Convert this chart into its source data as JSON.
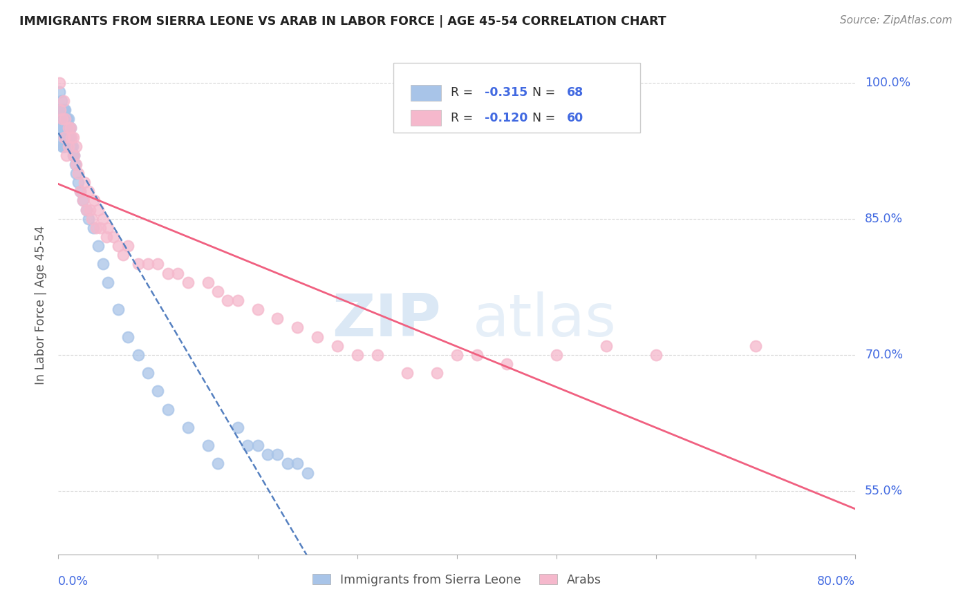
{
  "title": "IMMIGRANTS FROM SIERRA LEONE VS ARAB IN LABOR FORCE | AGE 45-54 CORRELATION CHART",
  "source": "Source: ZipAtlas.com",
  "ylabel": "In Labor Force | Age 45-54",
  "watermark_zip": "ZIP",
  "watermark_atlas": "atlas",
  "sierra_leone_x": [
    0.001,
    0.002,
    0.002,
    0.003,
    0.003,
    0.003,
    0.004,
    0.004,
    0.004,
    0.005,
    0.005,
    0.005,
    0.005,
    0.006,
    0.006,
    0.006,
    0.006,
    0.007,
    0.007,
    0.007,
    0.007,
    0.008,
    0.008,
    0.008,
    0.009,
    0.009,
    0.009,
    0.01,
    0.01,
    0.01,
    0.01,
    0.011,
    0.011,
    0.012,
    0.012,
    0.013,
    0.013,
    0.014,
    0.015,
    0.016,
    0.017,
    0.018,
    0.02,
    0.022,
    0.025,
    0.028,
    0.03,
    0.035,
    0.04,
    0.045,
    0.05,
    0.06,
    0.07,
    0.08,
    0.09,
    0.1,
    0.11,
    0.13,
    0.15,
    0.16,
    0.18,
    0.19,
    0.2,
    0.21,
    0.22,
    0.23,
    0.24,
    0.25
  ],
  "sierra_leone_y": [
    0.99,
    0.97,
    0.96,
    0.98,
    0.96,
    0.94,
    0.97,
    0.95,
    0.93,
    0.97,
    0.96,
    0.95,
    0.93,
    0.97,
    0.96,
    0.95,
    0.93,
    0.97,
    0.96,
    0.95,
    0.94,
    0.96,
    0.95,
    0.94,
    0.96,
    0.95,
    0.94,
    0.96,
    0.95,
    0.94,
    0.93,
    0.95,
    0.94,
    0.95,
    0.94,
    0.94,
    0.93,
    0.93,
    0.92,
    0.92,
    0.91,
    0.9,
    0.89,
    0.88,
    0.87,
    0.86,
    0.85,
    0.84,
    0.82,
    0.8,
    0.78,
    0.75,
    0.72,
    0.7,
    0.68,
    0.66,
    0.64,
    0.62,
    0.6,
    0.58,
    0.62,
    0.6,
    0.6,
    0.59,
    0.59,
    0.58,
    0.58,
    0.57
  ],
  "arabs_x": [
    0.001,
    0.002,
    0.004,
    0.005,
    0.006,
    0.007,
    0.008,
    0.01,
    0.01,
    0.012,
    0.013,
    0.015,
    0.016,
    0.018,
    0.018,
    0.02,
    0.022,
    0.025,
    0.026,
    0.028,
    0.03,
    0.032,
    0.034,
    0.036,
    0.038,
    0.04,
    0.042,
    0.045,
    0.048,
    0.05,
    0.055,
    0.06,
    0.065,
    0.07,
    0.08,
    0.09,
    0.1,
    0.11,
    0.12,
    0.13,
    0.15,
    0.16,
    0.17,
    0.18,
    0.2,
    0.22,
    0.24,
    0.26,
    0.28,
    0.3,
    0.32,
    0.35,
    0.38,
    0.4,
    0.42,
    0.45,
    0.5,
    0.55,
    0.6,
    0.7
  ],
  "arabs_y": [
    1.0,
    0.97,
    0.96,
    0.98,
    0.94,
    0.96,
    0.92,
    0.95,
    0.93,
    0.95,
    0.94,
    0.94,
    0.92,
    0.93,
    0.91,
    0.9,
    0.88,
    0.87,
    0.89,
    0.86,
    0.88,
    0.86,
    0.85,
    0.87,
    0.84,
    0.86,
    0.84,
    0.85,
    0.83,
    0.84,
    0.83,
    0.82,
    0.81,
    0.82,
    0.8,
    0.8,
    0.8,
    0.79,
    0.79,
    0.78,
    0.78,
    0.77,
    0.76,
    0.76,
    0.75,
    0.74,
    0.73,
    0.72,
    0.71,
    0.7,
    0.7,
    0.68,
    0.68,
    0.7,
    0.7,
    0.69,
    0.7,
    0.71,
    0.7,
    0.71
  ],
  "sierra_leone_color": "#a8c4e8",
  "arabs_color": "#f5b8cc",
  "sierra_leone_line_color": "#5580c0",
  "arabs_line_color": "#f06080",
  "background_color": "#ffffff",
  "grid_color": "#d0d0d0",
  "title_color": "#222222",
  "source_color": "#888888",
  "axis_label_color": "#4169e1",
  "xlim": [
    0.0,
    0.8
  ],
  "ylim": [
    0.48,
    1.03
  ],
  "ytick_vals": [
    0.55,
    0.7,
    0.85,
    1.0
  ],
  "ytick_labels": [
    "55.0%",
    "70.0%",
    "85.0%",
    "100.0%"
  ],
  "legend_sl_r": "-0.315",
  "legend_sl_n": "68",
  "legend_ar_r": "-0.120",
  "legend_ar_n": "60"
}
